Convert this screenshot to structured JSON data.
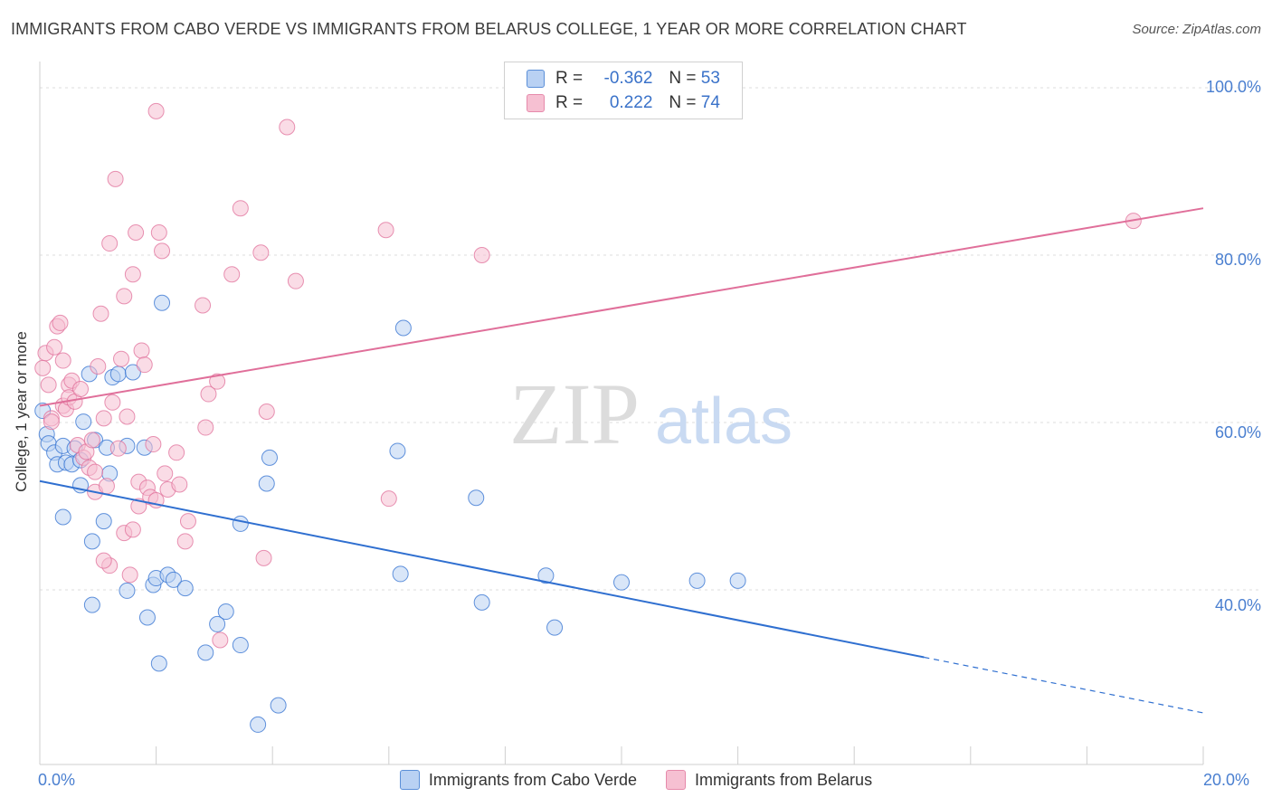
{
  "title": "IMMIGRANTS FROM CABO VERDE VS IMMIGRANTS FROM BELARUS COLLEGE, 1 YEAR OR MORE CORRELATION CHART",
  "source": "Source: ZipAtlas.com",
  "watermark": {
    "zip": "ZIP",
    "atlas": "atlas"
  },
  "colors": {
    "blue": "#2f6fd0",
    "blue_fill": "#b9d1f3",
    "pink": "#e06f9a",
    "pink_fill": "#f6c0d2"
  },
  "legend": {
    "r_label": "R =",
    "n_label": "N =",
    "rows": [
      {
        "name": "cabo-verde",
        "r": "-0.362",
        "n": "53"
      },
      {
        "name": "belarus",
        "r": "0.222",
        "n": "74"
      }
    ]
  },
  "bottom_legend": [
    "Immigrants from Cabo Verde",
    "Immigrants from Belarus"
  ],
  "chart_data": {
    "type": "scatter",
    "title": "IMMIGRANTS FROM CABO VERDE VS IMMIGRANTS FROM BELARUS COLLEGE, 1 YEAR OR MORE CORRELATION CHART",
    "xlabel": "",
    "ylabel": "College, 1 year or more",
    "x_tick_labels": [
      "0.0%",
      "20.0%"
    ],
    "y_tick_labels": [
      "100.0%",
      "80.0%",
      "60.0%",
      "40.0%"
    ],
    "y_ticks": [
      100,
      80,
      60,
      40
    ],
    "xlim": [
      0,
      20
    ],
    "ylim": [
      22,
      102
    ],
    "series": [
      {
        "name": "Immigrants from Cabo Verde",
        "color": "#2f6fd0",
        "fill": "#b9d1f3",
        "trend": {
          "x0": 0,
          "y0": 53.0,
          "x1": 20,
          "y1": 25.3,
          "solid_until": 15.2
        },
        "points": [
          [
            0.05,
            61.4
          ],
          [
            0.12,
            58.6
          ],
          [
            0.15,
            57.5
          ],
          [
            0.25,
            56.4
          ],
          [
            0.3,
            55.0
          ],
          [
            0.4,
            57.2
          ],
          [
            0.45,
            55.2
          ],
          [
            0.55,
            55.0
          ],
          [
            0.6,
            56.9
          ],
          [
            0.7,
            55.5
          ],
          [
            0.7,
            52.5
          ],
          [
            0.75,
            60.1
          ],
          [
            0.85,
            65.8
          ],
          [
            0.95,
            57.9
          ],
          [
            1.15,
            57.0
          ],
          [
            1.2,
            53.9
          ],
          [
            1.25,
            65.4
          ],
          [
            1.35,
            65.8
          ],
          [
            1.5,
            57.2
          ],
          [
            1.6,
            66.0
          ],
          [
            1.8,
            57.0
          ],
          [
            2.1,
            74.3
          ],
          [
            0.4,
            48.7
          ],
          [
            0.9,
            45.8
          ],
          [
            1.1,
            48.2
          ],
          [
            0.9,
            38.2
          ],
          [
            1.5,
            39.9
          ],
          [
            1.85,
            36.7
          ],
          [
            1.95,
            40.6
          ],
          [
            2.0,
            41.4
          ],
          [
            2.2,
            41.8
          ],
          [
            2.3,
            41.2
          ],
          [
            2.5,
            40.2
          ],
          [
            2.05,
            31.2
          ],
          [
            2.85,
            32.5
          ],
          [
            3.05,
            35.9
          ],
          [
            3.2,
            37.4
          ],
          [
            3.45,
            33.4
          ],
          [
            3.45,
            47.9
          ],
          [
            3.75,
            23.9
          ],
          [
            3.9,
            52.7
          ],
          [
            3.95,
            55.8
          ],
          [
            4.1,
            26.2
          ],
          [
            6.25,
            71.3
          ],
          [
            6.15,
            56.6
          ],
          [
            6.2,
            41.9
          ],
          [
            7.5,
            51.0
          ],
          [
            7.6,
            38.5
          ],
          [
            8.7,
            41.7
          ],
          [
            8.85,
            35.5
          ],
          [
            10.0,
            40.9
          ],
          [
            11.3,
            41.1
          ],
          [
            12.0,
            41.1
          ]
        ]
      },
      {
        "name": "Immigrants from Belarus",
        "color": "#e06f9a",
        "fill": "#f6c0d2",
        "trend": {
          "x0": 0,
          "y0": 62.0,
          "x1": 20,
          "y1": 85.6
        },
        "points": [
          [
            0.05,
            66.5
          ],
          [
            0.1,
            68.3
          ],
          [
            0.15,
            64.5
          ],
          [
            0.2,
            60.5
          ],
          [
            0.2,
            60.1
          ],
          [
            0.25,
            69.0
          ],
          [
            0.3,
            71.5
          ],
          [
            0.35,
            71.9
          ],
          [
            0.4,
            67.4
          ],
          [
            0.4,
            62.0
          ],
          [
            0.45,
            61.6
          ],
          [
            0.5,
            64.5
          ],
          [
            0.5,
            63.0
          ],
          [
            0.55,
            65.0
          ],
          [
            0.6,
            62.5
          ],
          [
            0.65,
            57.3
          ],
          [
            0.7,
            64.0
          ],
          [
            0.75,
            55.8
          ],
          [
            0.8,
            56.5
          ],
          [
            0.85,
            54.6
          ],
          [
            0.9,
            57.9
          ],
          [
            0.95,
            51.7
          ],
          [
            1.0,
            66.7
          ],
          [
            1.05,
            73.0
          ],
          [
            1.1,
            60.5
          ],
          [
            1.15,
            52.4
          ],
          [
            1.2,
            81.4
          ],
          [
            1.25,
            62.4
          ],
          [
            1.3,
            89.1
          ],
          [
            1.35,
            56.9
          ],
          [
            1.4,
            67.6
          ],
          [
            1.45,
            75.1
          ],
          [
            1.5,
            60.7
          ],
          [
            1.55,
            41.8
          ],
          [
            1.6,
            77.7
          ],
          [
            1.65,
            82.7
          ],
          [
            1.7,
            52.9
          ],
          [
            1.7,
            50.0
          ],
          [
            1.75,
            68.6
          ],
          [
            1.8,
            66.9
          ],
          [
            1.85,
            52.2
          ],
          [
            1.9,
            51.1
          ],
          [
            1.95,
            57.4
          ],
          [
            2.0,
            50.7
          ],
          [
            2.05,
            82.7
          ],
          [
            2.1,
            80.5
          ],
          [
            2.15,
            53.9
          ],
          [
            2.2,
            52.0
          ],
          [
            2.35,
            56.4
          ],
          [
            2.4,
            52.6
          ],
          [
            2.5,
            45.8
          ],
          [
            2.55,
            48.2
          ],
          [
            2.8,
            74.0
          ],
          [
            2.85,
            59.4
          ],
          [
            2.9,
            63.4
          ],
          [
            3.05,
            64.9
          ],
          [
            3.3,
            77.7
          ],
          [
            3.45,
            85.6
          ],
          [
            3.8,
            80.3
          ],
          [
            3.85,
            43.8
          ],
          [
            3.9,
            61.3
          ],
          [
            4.25,
            95.3
          ],
          [
            4.4,
            76.9
          ],
          [
            5.95,
            83.0
          ],
          [
            6.0,
            50.9
          ],
          [
            7.6,
            80.0
          ],
          [
            2.0,
            97.2
          ],
          [
            1.2,
            42.9
          ],
          [
            1.1,
            43.5
          ],
          [
            3.1,
            34.0
          ],
          [
            1.45,
            46.8
          ],
          [
            0.95,
            54.1
          ],
          [
            1.6,
            47.2
          ],
          [
            18.8,
            84.1
          ]
        ]
      }
    ]
  }
}
